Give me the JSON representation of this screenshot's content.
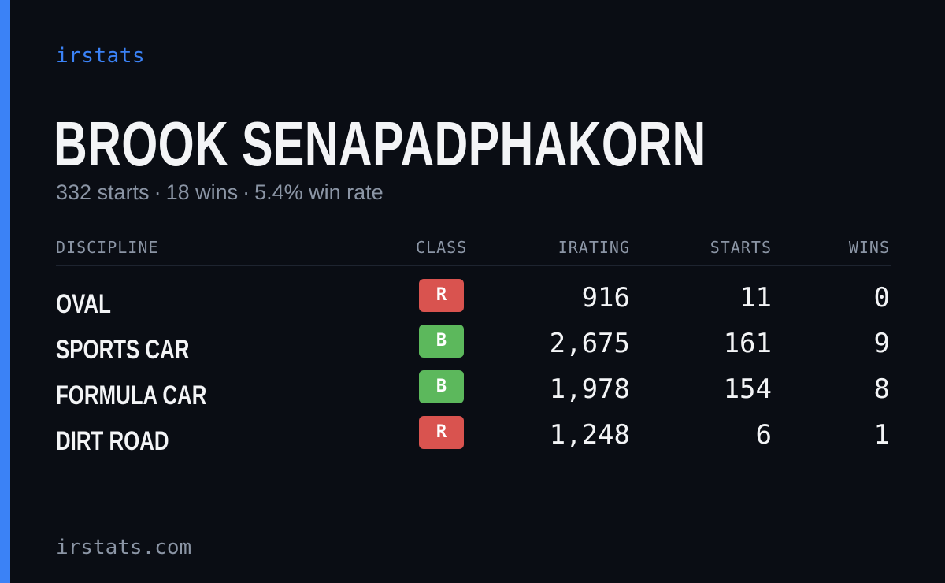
{
  "brand": "irstats",
  "driver": {
    "name": "BROOK SENAPADPHAKORN"
  },
  "summary": {
    "starts": "332 starts",
    "wins": "18 wins",
    "win_rate": "5.4% win rate",
    "separator": "·"
  },
  "table": {
    "headers": {
      "discipline": "DISCIPLINE",
      "class": "CLASS",
      "irating": "IRATING",
      "starts": "STARTS",
      "wins": "WINS"
    },
    "rows": [
      {
        "discipline": "OVAL",
        "class": "R",
        "irating": "916",
        "starts": "11",
        "wins": "0"
      },
      {
        "discipline": "SPORTS CAR",
        "class": "B",
        "irating": "2,675",
        "starts": "161",
        "wins": "9"
      },
      {
        "discipline": "FORMULA CAR",
        "class": "B",
        "irating": "1,978",
        "starts": "154",
        "wins": "8"
      },
      {
        "discipline": "DIRT ROAD",
        "class": "R",
        "irating": "1,248",
        "starts": "6",
        "wins": "1"
      }
    ]
  },
  "class_colors": {
    "R": "#d9534f",
    "B": "#5cb85c"
  },
  "colors": {
    "accent": "#3b82f6",
    "background": "#0a0d14",
    "text_primary": "#f3f4f6",
    "text_muted": "#8b95a5"
  },
  "footer": "irstats.com"
}
